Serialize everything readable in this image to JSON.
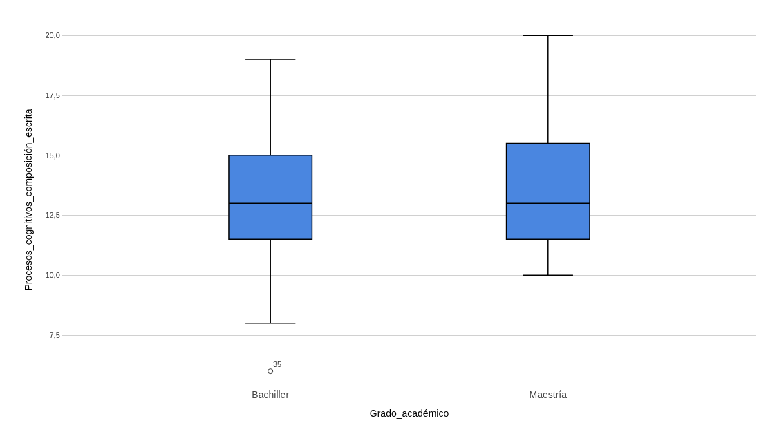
{
  "chart_data": {
    "type": "box",
    "xlabel": "Grado_académico",
    "ylabel": "Procesos_cognitivos_composición_escrita",
    "categories": [
      "Bachiller",
      "Maestría"
    ],
    "boxes": [
      {
        "low": 8,
        "q1": 11.5,
        "median": 13,
        "q3": 15,
        "high": 19,
        "outliers": [
          6
        ]
      },
      {
        "low": 10,
        "q1": 11.5,
        "median": 13,
        "q3": 15.5,
        "high": 20
      }
    ],
    "color": "#4a86e0",
    "ylim": [
      5.4,
      20.9
    ],
    "yticks": [
      {
        "value": 7.5,
        "label": "7,5"
      },
      {
        "value": 10,
        "label": "10,0"
      },
      {
        "value": 12.5,
        "label": "12,5"
      },
      {
        "value": 15,
        "label": "15,0"
      },
      {
        "value": 17.5,
        "label": "17,5"
      },
      {
        "value": 20,
        "label": "20,0"
      }
    ],
    "grid": "y",
    "annotations": [
      "35"
    ]
  }
}
